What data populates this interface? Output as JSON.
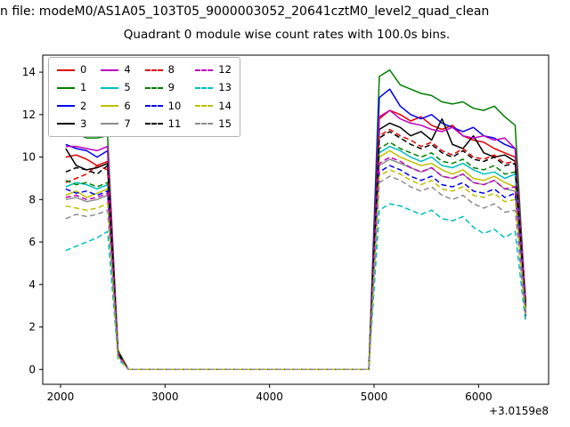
{
  "figure": {
    "suptitle": "n file: modeM0/AS1A05_103T05_9000003052_20641cztM0_level2_quad_clean",
    "title": "Quadrant 0 module wise count rates with 100.0s bins."
  },
  "chart_data": {
    "type": "line",
    "title": "Quadrant 0 module wise count rates with 100.0s bins.",
    "xlabel": "",
    "ylabel": "",
    "x_offset_label": "+3.0159e8",
    "xlim": [
      1830,
      6670
    ],
    "ylim": [
      -0.7,
      14.8
    ],
    "xticks": [
      2000,
      3000,
      4000,
      5000,
      6000
    ],
    "yticks": [
      0,
      2,
      4,
      6,
      8,
      10,
      12,
      14
    ],
    "grid": false,
    "legend_position": "upper left",
    "legend_columns": 4,
    "x": [
      2050,
      2150,
      2250,
      2350,
      2450,
      2550,
      2650,
      4950,
      5050,
      5150,
      5250,
      5350,
      5450,
      5550,
      5650,
      5750,
      5850,
      5950,
      6050,
      6150,
      6250,
      6350,
      6450
    ],
    "series": [
      {
        "name": "0",
        "color": "#e00000",
        "dash": "solid",
        "values": [
          10.0,
          10.1,
          9.9,
          9.6,
          9.8,
          0.8,
          0,
          0,
          11.8,
          12.2,
          12.0,
          11.7,
          11.9,
          11.5,
          11.3,
          11.5,
          11.0,
          10.8,
          10.7,
          10.4,
          10.2,
          10.0,
          3.2
        ]
      },
      {
        "name": "1",
        "color": "#008000",
        "dash": "solid",
        "values": [
          11.0,
          11.1,
          10.9,
          10.9,
          11.0,
          0.9,
          0,
          0,
          13.8,
          14.1,
          13.4,
          13.2,
          13.0,
          12.9,
          12.6,
          12.5,
          12.6,
          12.3,
          12.2,
          12.4,
          11.9,
          11.5,
          3.0
        ]
      },
      {
        "name": "2",
        "color": "#0000ee",
        "dash": "solid",
        "values": [
          10.6,
          10.4,
          10.3,
          10.0,
          10.3,
          0.8,
          0,
          0,
          12.8,
          13.2,
          12.4,
          12.0,
          11.8,
          12.0,
          11.6,
          11.4,
          11.2,
          11.4,
          11.0,
          10.9,
          10.6,
          10.4,
          2.9
        ]
      },
      {
        "name": "3",
        "color": "#000000",
        "dash": "solid",
        "values": [
          10.4,
          9.6,
          9.4,
          9.5,
          9.7,
          0.8,
          0,
          0,
          11.3,
          11.6,
          11.4,
          11.0,
          11.2,
          10.8,
          11.8,
          10.6,
          10.4,
          11.0,
          10.2,
          10.0,
          10.1,
          9.8,
          3.1
        ]
      },
      {
        "name": "4",
        "color": "#bf00bf",
        "dash": "solid",
        "values": [
          10.5,
          10.5,
          10.4,
          10.3,
          10.5,
          0.8,
          0,
          0,
          11.9,
          12.2,
          11.8,
          11.6,
          11.5,
          11.3,
          11.2,
          11.4,
          11.0,
          10.9,
          11.0,
          10.8,
          10.9,
          10.4,
          3.3
        ]
      },
      {
        "name": "5",
        "color": "#00bfbf",
        "dash": "solid",
        "values": [
          8.6,
          8.8,
          8.7,
          8.5,
          8.7,
          0.7,
          0,
          0,
          10.2,
          10.5,
          10.3,
          10.0,
          9.8,
          10.0,
          9.6,
          9.5,
          9.7,
          9.4,
          9.2,
          9.3,
          9.0,
          9.2,
          2.8
        ]
      },
      {
        "name": "6",
        "color": "#bfbf00",
        "dash": "solid",
        "values": [
          8.2,
          8.4,
          8.1,
          8.3,
          8.5,
          0.7,
          0,
          0,
          10.0,
          10.3,
          10.0,
          9.8,
          9.6,
          9.7,
          9.4,
          9.2,
          9.4,
          9.0,
          8.9,
          9.1,
          8.8,
          8.6,
          2.7
        ]
      },
      {
        "name": "7",
        "color": "#8c8c8c",
        "dash": "solid",
        "values": [
          8.0,
          8.1,
          7.9,
          8.0,
          8.2,
          0.7,
          0,
          0,
          9.6,
          9.9,
          9.7,
          9.5,
          9.3,
          9.5,
          9.1,
          9.0,
          9.2,
          8.8,
          8.7,
          8.9,
          8.5,
          8.4,
          2.6
        ]
      },
      {
        "name": "8",
        "color": "#e00000",
        "dash": "dashed",
        "values": [
          8.8,
          9.0,
          9.2,
          9.6,
          9.4,
          0.8,
          0,
          0,
          11.0,
          11.3,
          11.0,
          10.8,
          10.5,
          10.7,
          10.3,
          10.1,
          10.4,
          10.0,
          9.9,
          10.1,
          9.7,
          9.8,
          3.0
        ]
      },
      {
        "name": "9",
        "color": "#008000",
        "dash": "dashed",
        "values": [
          8.9,
          8.7,
          8.8,
          8.6,
          8.8,
          0.7,
          0,
          0,
          10.4,
          10.7,
          10.4,
          10.2,
          10.0,
          10.2,
          9.8,
          9.7,
          9.9,
          9.5,
          9.4,
          9.6,
          9.2,
          9.3,
          2.9
        ]
      },
      {
        "name": "10",
        "color": "#0000ee",
        "dash": "dashed",
        "values": [
          8.5,
          8.3,
          8.4,
          8.2,
          8.4,
          0.7,
          0,
          0,
          9.3,
          9.6,
          9.4,
          9.1,
          8.9,
          9.1,
          8.7,
          8.6,
          8.8,
          8.4,
          8.3,
          8.5,
          8.1,
          8.3,
          2.5
        ]
      },
      {
        "name": "11",
        "color": "#000000",
        "dash": "dashed",
        "values": [
          9.3,
          9.5,
          9.4,
          9.2,
          9.6,
          0.8,
          0,
          0,
          10.9,
          11.2,
          10.9,
          10.6,
          10.4,
          10.6,
          10.2,
          10.0,
          10.3,
          9.9,
          9.8,
          10.0,
          9.6,
          9.7,
          3.0
        ]
      },
      {
        "name": "12",
        "color": "#bf00bf",
        "dash": "dashed",
        "values": [
          8.1,
          8.2,
          8.0,
          8.1,
          8.3,
          0.7,
          0,
          0,
          9.7,
          10.0,
          9.8,
          9.5,
          9.3,
          9.5,
          9.1,
          9.0,
          9.2,
          8.8,
          8.7,
          8.9,
          8.5,
          8.6,
          2.7
        ]
      },
      {
        "name": "13",
        "color": "#00bfbf",
        "dash": "dashed",
        "values": [
          5.6,
          5.8,
          6.0,
          6.2,
          6.5,
          0.5,
          0,
          0,
          7.5,
          7.8,
          7.7,
          7.5,
          7.3,
          7.5,
          7.1,
          7.0,
          7.2,
          6.7,
          6.4,
          6.6,
          6.2,
          6.5,
          2.2
        ]
      },
      {
        "name": "14",
        "color": "#bfbf00",
        "dash": "dashed",
        "values": [
          7.7,
          7.6,
          7.5,
          7.6,
          7.8,
          0.6,
          0,
          0,
          9.1,
          9.4,
          9.2,
          8.9,
          8.7,
          8.9,
          8.5,
          8.4,
          8.6,
          8.2,
          8.1,
          8.3,
          7.9,
          8.0,
          2.6
        ]
      },
      {
        "name": "15",
        "color": "#8c8c8c",
        "dash": "dashed",
        "values": [
          7.1,
          7.3,
          7.2,
          7.3,
          7.5,
          0.6,
          0,
          0,
          8.8,
          9.1,
          8.9,
          8.6,
          8.4,
          8.6,
          8.2,
          8.0,
          8.2,
          7.8,
          7.6,
          7.8,
          7.4,
          7.5,
          2.4
        ]
      }
    ]
  }
}
